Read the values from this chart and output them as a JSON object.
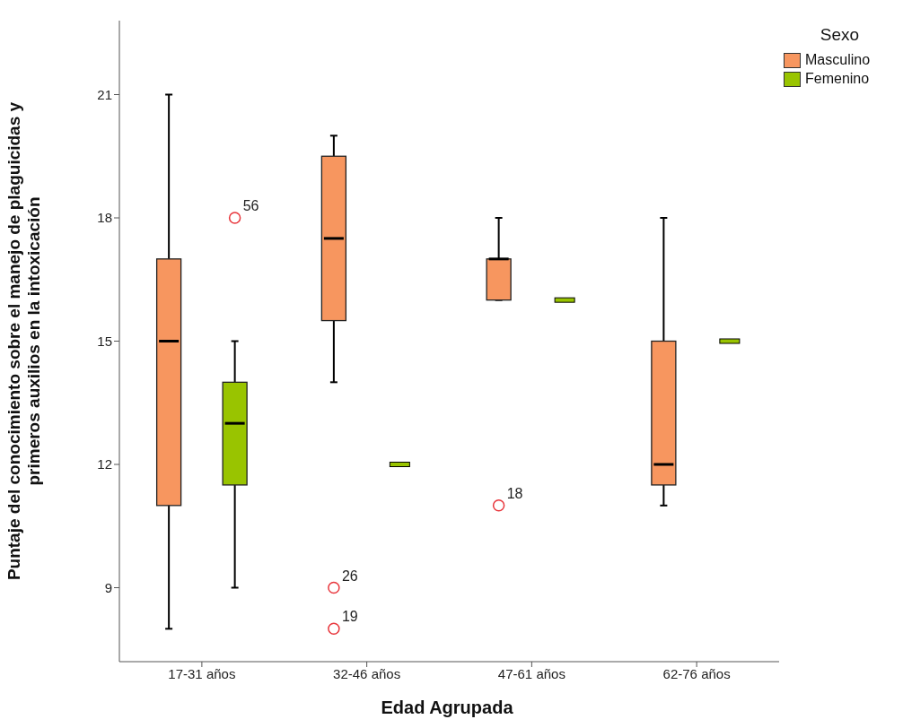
{
  "chart_data": {
    "type": "box",
    "xlabel": "Edad Agrupada",
    "ylabel": "Puntaje  del conocimiento sobre el manejo de plaguicidas y\nprimeros auxilios en la intoxicación",
    "legend_title": "Sexo",
    "legend": "top right",
    "categories": [
      "17-31 años",
      "32-46 años",
      "47-61 años",
      "62-76 años"
    ],
    "ylim": [
      7.2,
      22.8
    ],
    "yticks": [
      9,
      12,
      15,
      18,
      21
    ],
    "series": [
      {
        "name": "Masculino",
        "color": "#f7965f",
        "boxes": [
          {
            "low": 8,
            "q1": 11,
            "median": 15,
            "q3": 17,
            "high": 21
          },
          {
            "low": 14,
            "q1": 15.5,
            "median": 17.5,
            "q3": 19.5,
            "high": 20,
            "outliers": [
              9,
              8
            ]
          },
          {
            "low": 16,
            "q1": 16,
            "median": 17,
            "q3": 17,
            "high": 18,
            "outliers": [
              11
            ]
          },
          {
            "low": 11,
            "q1": 11.5,
            "median": 12,
            "q3": 15,
            "high": 18
          }
        ]
      },
      {
        "name": "Femenino",
        "color": "#99c400",
        "boxes": [
          {
            "low": 9,
            "q1": 11.5,
            "median": 13,
            "q3": 14,
            "high": 15,
            "outliers": [
              18
            ]
          },
          {
            "low": 12,
            "q1": 12,
            "median": 12,
            "q3": 12,
            "high": 12
          },
          {
            "low": 16,
            "q1": 16,
            "median": 16,
            "q3": 16,
            "high": 16
          },
          {
            "low": 15,
            "q1": 15,
            "median": 15,
            "q3": 15,
            "high": 15
          }
        ]
      }
    ],
    "annotations": [
      "26",
      "19",
      "18",
      "56"
    ]
  }
}
